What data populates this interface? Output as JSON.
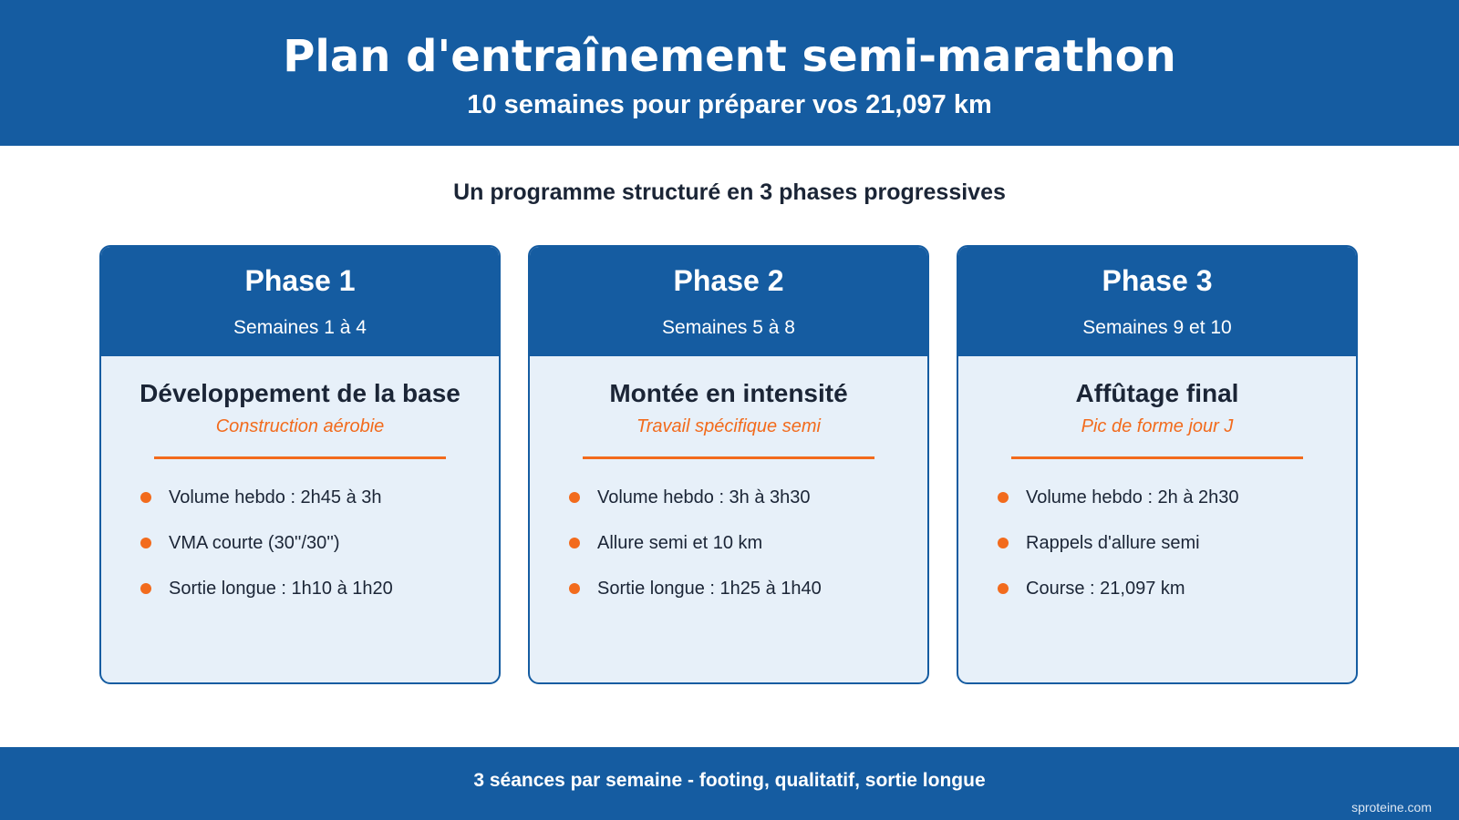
{
  "header": {
    "title": "Plan d'entraînement semi-marathon",
    "subtitle": "10 semaines pour préparer vos 21,097 km"
  },
  "intro": "Un programme structuré en 3 phases progressives",
  "phases": [
    {
      "title": "Phase 1",
      "weeks": "Semaines 1 à 4",
      "heading": "Développement de la base",
      "tagline": "Construction aérobie",
      "items": [
        "Volume hebdo : 2h45 à 3h",
        "VMA courte (30''/30'')",
        "Sortie longue : 1h10 à 1h20"
      ]
    },
    {
      "title": "Phase 2",
      "weeks": "Semaines 5 à 8",
      "heading": "Montée en intensité",
      "tagline": "Travail spécifique semi",
      "items": [
        "Volume hebdo : 3h à 3h30",
        "Allure semi et 10 km",
        "Sortie longue : 1h25 à 1h40"
      ]
    },
    {
      "title": "Phase 3",
      "weeks": "Semaines 9 et 10",
      "heading": "Affûtage final",
      "tagline": "Pic de forme jour J",
      "items": [
        "Volume hebdo : 2h à 2h30",
        "Rappels d'allure semi",
        "Course : 21,097 km"
      ]
    }
  ],
  "footer": {
    "text": "3 séances par semaine - footing, qualitatif, sortie longue",
    "credit": "sproteine.com"
  },
  "colors": {
    "primary": "#155ca1",
    "accent": "#f26b1d",
    "card_background": "#e7f0f9",
    "text_dark": "#1b2536"
  }
}
